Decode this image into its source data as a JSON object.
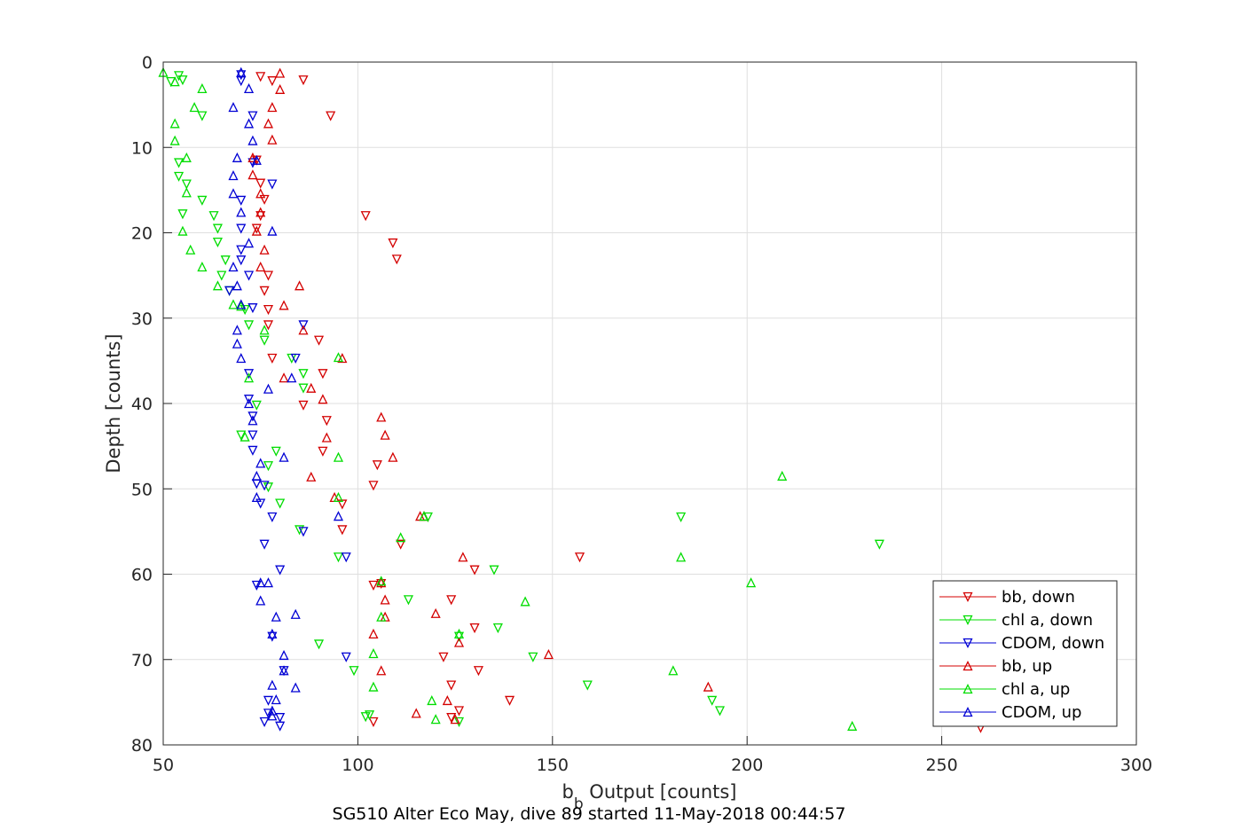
{
  "chart_data": {
    "type": "scatter",
    "title": "SG510 Alter Eco May, dive 89 started 11-May-2018 00:44:57",
    "xlabel_main": "b",
    "xlabel_sub": "b",
    "xlabel_rest": " Output [counts]",
    "ylabel": "Depth [counts]",
    "xlim": [
      50,
      300
    ],
    "ylim": [
      0,
      80
    ],
    "y_reversed": true,
    "grid": true,
    "xticks": [
      50,
      100,
      150,
      200,
      250,
      300
    ],
    "yticks": [
      0,
      10,
      20,
      30,
      40,
      50,
      60,
      70,
      80
    ],
    "legend_position": "bottom-right",
    "series": [
      {
        "name": "bb, down",
        "color": "#d40000",
        "marker": "triangle-down",
        "points": [
          [
            75,
            1.7
          ],
          [
            78,
            2.2
          ],
          [
            86,
            2.1
          ],
          [
            93,
            6.3
          ],
          [
            74,
            11.5
          ],
          [
            75,
            14.2
          ],
          [
            76,
            16.1
          ],
          [
            102,
            18
          ],
          [
            74,
            19.5
          ],
          [
            109,
            21.2
          ],
          [
            110,
            23.1
          ],
          [
            75,
            18
          ],
          [
            77,
            25
          ],
          [
            76,
            26.8
          ],
          [
            77,
            29
          ],
          [
            77,
            30.8
          ],
          [
            90,
            32.6
          ],
          [
            78,
            34.7
          ],
          [
            91,
            36.5
          ],
          [
            86,
            40.2
          ],
          [
            92,
            42
          ],
          [
            91,
            45.6
          ],
          [
            105,
            47.2
          ],
          [
            104,
            49.6
          ],
          [
            96,
            51.8
          ],
          [
            96,
            54.8
          ],
          [
            111,
            56.5
          ],
          [
            130,
            59.5
          ],
          [
            157,
            58
          ],
          [
            104,
            61.3
          ],
          [
            106,
            61.1
          ],
          [
            124,
            63
          ],
          [
            130,
            66.3
          ],
          [
            122,
            69.7
          ],
          [
            131,
            71.3
          ],
          [
            124,
            73
          ],
          [
            139,
            74.8
          ],
          [
            126,
            76
          ],
          [
            124,
            76.8
          ],
          [
            104,
            77.3
          ],
          [
            260,
            78
          ]
        ]
      },
      {
        "name": "chl a, down",
        "color": "#00dd00",
        "marker": "triangle-down",
        "points": [
          [
            54,
            1.6
          ],
          [
            52,
            2.3
          ],
          [
            55,
            2.1
          ],
          [
            60,
            6.3
          ],
          [
            54,
            11.8
          ],
          [
            54,
            13.4
          ],
          [
            56,
            14.3
          ],
          [
            60,
            16.2
          ],
          [
            55,
            17.8
          ],
          [
            63,
            18
          ],
          [
            64,
            19.5
          ],
          [
            64,
            21.1
          ],
          [
            66,
            23.2
          ],
          [
            65,
            25
          ],
          [
            67,
            26.8
          ],
          [
            71,
            29
          ],
          [
            72,
            30.8
          ],
          [
            76,
            32.6
          ],
          [
            83,
            34.7
          ],
          [
            86,
            36.5
          ],
          [
            86,
            38.2
          ],
          [
            74,
            40.2
          ],
          [
            70,
            43.7
          ],
          [
            79,
            45.6
          ],
          [
            77,
            47.3
          ],
          [
            77,
            49.8
          ],
          [
            80,
            51.7
          ],
          [
            85,
            54.8
          ],
          [
            95,
            58
          ],
          [
            183,
            53.3
          ],
          [
            118,
            53.3
          ],
          [
            234,
            56.5
          ],
          [
            135,
            59.5
          ],
          [
            113,
            63
          ],
          [
            136,
            66.3
          ],
          [
            90,
            68.2
          ],
          [
            99,
            71.3
          ],
          [
            145,
            69.7
          ],
          [
            159,
            73
          ],
          [
            191,
            74.8
          ],
          [
            193,
            76
          ],
          [
            102,
            76.7
          ],
          [
            126,
            77.3
          ],
          [
            126,
            67.3
          ],
          [
            103,
            76.5
          ]
        ]
      },
      {
        "name": "CDOM, down",
        "color": "#0000d4",
        "marker": "triangle-down",
        "points": [
          [
            70,
            1.5
          ],
          [
            70,
            2.2
          ],
          [
            73,
            6.3
          ],
          [
            73,
            11.8
          ],
          [
            78,
            14.3
          ],
          [
            70,
            16.2
          ],
          [
            70,
            19.5
          ],
          [
            70,
            22
          ],
          [
            70,
            23.2
          ],
          [
            72,
            25
          ],
          [
            67,
            26.8
          ],
          [
            73,
            28.8
          ],
          [
            86,
            30.8
          ],
          [
            84,
            34.7
          ],
          [
            72,
            36.5
          ],
          [
            72,
            39.5
          ],
          [
            73,
            41.5
          ],
          [
            73,
            43.7
          ],
          [
            73,
            45.5
          ],
          [
            76,
            49.6
          ],
          [
            75,
            51.7
          ],
          [
            78,
            53.3
          ],
          [
            86,
            55
          ],
          [
            97,
            58
          ],
          [
            76,
            56.5
          ],
          [
            80,
            59.5
          ],
          [
            74,
            61.3
          ],
          [
            78,
            67.3
          ],
          [
            97,
            69.7
          ],
          [
            81,
            71.3
          ],
          [
            77,
            74.8
          ],
          [
            77,
            76.3
          ],
          [
            80,
            76.8
          ],
          [
            76,
            77.3
          ],
          [
            80,
            77.8
          ],
          [
            74,
            49.4
          ]
        ]
      },
      {
        "name": "bb, up",
        "color": "#d40000",
        "marker": "triangle-up",
        "points": [
          [
            80,
            1.3
          ],
          [
            80,
            3.2
          ],
          [
            78,
            5.3
          ],
          [
            77,
            7.2
          ],
          [
            78,
            9.1
          ],
          [
            73,
            11.2
          ],
          [
            73,
            13.2
          ],
          [
            75,
            15.4
          ],
          [
            75,
            17.6
          ],
          [
            74,
            19.8
          ],
          [
            76,
            22
          ],
          [
            75,
            24
          ],
          [
            85,
            26.2
          ],
          [
            81,
            28.5
          ],
          [
            86,
            31.4
          ],
          [
            81,
            37
          ],
          [
            88,
            38.2
          ],
          [
            91,
            39.5
          ],
          [
            96,
            34.7
          ],
          [
            92,
            44
          ],
          [
            106,
            41.6
          ],
          [
            107,
            43.7
          ],
          [
            109,
            46.3
          ],
          [
            88,
            48.6
          ],
          [
            94,
            51
          ],
          [
            116,
            53.2
          ],
          [
            117,
            53.2
          ],
          [
            127,
            58
          ],
          [
            106,
            61
          ],
          [
            107,
            63
          ],
          [
            107,
            65
          ],
          [
            120,
            64.6
          ],
          [
            104,
            67
          ],
          [
            126,
            68
          ],
          [
            149,
            69.4
          ],
          [
            106,
            71.3
          ],
          [
            190,
            73.2
          ],
          [
            123,
            74.8
          ],
          [
            115,
            76.3
          ],
          [
            125,
            77
          ]
        ]
      },
      {
        "name": "chl a, up",
        "color": "#00dd00",
        "marker": "triangle-up",
        "points": [
          [
            50,
            1.2
          ],
          [
            53,
            2.3
          ],
          [
            60,
            3.1
          ],
          [
            58,
            5.3
          ],
          [
            53,
            7.2
          ],
          [
            53,
            9.2
          ],
          [
            56,
            11.2
          ],
          [
            56,
            15.3
          ],
          [
            55,
            19.8
          ],
          [
            57,
            22
          ],
          [
            60,
            24
          ],
          [
            64,
            26.2
          ],
          [
            68,
            28.4
          ],
          [
            70,
            28.6
          ],
          [
            76,
            31.4
          ],
          [
            72,
            37
          ],
          [
            95,
            34.6
          ],
          [
            95,
            51
          ],
          [
            117,
            53.2
          ],
          [
            111,
            55.7
          ],
          [
            209,
            48.5
          ],
          [
            183,
            58
          ],
          [
            106,
            60.8
          ],
          [
            201,
            61
          ],
          [
            143,
            63.2
          ],
          [
            106,
            65
          ],
          [
            126,
            67
          ],
          [
            104,
            69.3
          ],
          [
            181,
            71.3
          ],
          [
            104,
            73.2
          ],
          [
            119,
            74.8
          ],
          [
            120,
            77
          ],
          [
            227,
            77.8
          ],
          [
            95,
            46.3
          ],
          [
            71,
            43.9
          ]
        ]
      },
      {
        "name": "CDOM, up",
        "color": "#0000d4",
        "marker": "triangle-up",
        "points": [
          [
            70,
            1.2
          ],
          [
            72,
            3.1
          ],
          [
            68,
            5.3
          ],
          [
            72,
            7.2
          ],
          [
            73,
            9.2
          ],
          [
            69,
            11.2
          ],
          [
            74,
            11.5
          ],
          [
            68,
            13.3
          ],
          [
            68,
            15.4
          ],
          [
            70,
            17.6
          ],
          [
            78,
            19.8
          ],
          [
            72,
            21.2
          ],
          [
            68,
            24
          ],
          [
            69,
            26.2
          ],
          [
            70,
            28.4
          ],
          [
            69,
            31.4
          ],
          [
            69,
            33
          ],
          [
            70,
            34.7
          ],
          [
            83,
            37
          ],
          [
            77,
            38.3
          ],
          [
            72,
            40
          ],
          [
            73,
            42
          ],
          [
            81,
            46.3
          ],
          [
            75,
            47
          ],
          [
            74,
            48.5
          ],
          [
            74,
            51
          ],
          [
            95,
            53.2
          ],
          [
            75,
            61
          ],
          [
            77,
            61
          ],
          [
            75,
            63.1
          ],
          [
            79,
            65
          ],
          [
            84,
            64.7
          ],
          [
            78,
            67
          ],
          [
            81,
            69.5
          ],
          [
            81,
            71.3
          ],
          [
            84,
            73.3
          ],
          [
            78,
            73
          ],
          [
            79,
            74.7
          ],
          [
            78,
            76
          ],
          [
            78,
            76.6
          ]
        ]
      }
    ]
  }
}
